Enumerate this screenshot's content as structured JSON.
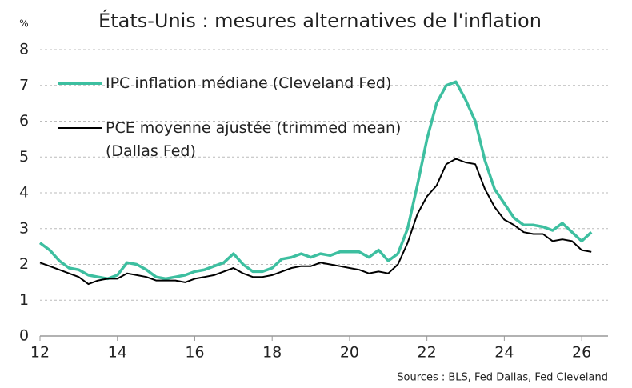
{
  "chart_data": {
    "type": "line",
    "title": "États-Unis : mesures alternatives de l'inflation",
    "y_label": "%",
    "source": "Sources : BLS, Fed Dallas, Fed Cleveland",
    "x": [
      12,
      12.25,
      12.5,
      12.75,
      13,
      13.25,
      13.5,
      13.75,
      14,
      14.25,
      14.5,
      14.75,
      15,
      15.25,
      15.5,
      15.75,
      16,
      16.25,
      16.5,
      16.75,
      17,
      17.25,
      17.5,
      17.75,
      18,
      18.25,
      18.5,
      18.75,
      19,
      19.25,
      19.5,
      19.75,
      20,
      20.25,
      20.5,
      20.75,
      21,
      21.25,
      21.5,
      21.75,
      22,
      22.25,
      22.5,
      22.75,
      23,
      23.25,
      23.5,
      23.75,
      24,
      24.25,
      24.5,
      24.75,
      25,
      25.25,
      25.5,
      25.75,
      26,
      26.25
    ],
    "series": [
      {
        "name": "IPC inflation médiane (Cleveland Fed)",
        "color": "#3dbfa0",
        "values": [
          2.6,
          2.4,
          2.1,
          1.9,
          1.85,
          1.7,
          1.65,
          1.6,
          1.7,
          2.05,
          2.0,
          1.85,
          1.65,
          1.6,
          1.65,
          1.7,
          1.8,
          1.85,
          1.95,
          2.05,
          2.3,
          2.0,
          1.8,
          1.8,
          1.9,
          2.15,
          2.2,
          2.3,
          2.2,
          2.3,
          2.25,
          2.35,
          2.35,
          2.35,
          2.2,
          2.4,
          2.1,
          2.3,
          3.0,
          4.2,
          5.5,
          6.5,
          7.0,
          7.1,
          6.6,
          6.0,
          4.9,
          4.1,
          3.7,
          3.3,
          3.1,
          3.1,
          3.05,
          2.95,
          3.15,
          2.9,
          2.65,
          2.9
        ]
      },
      {
        "name": "PCE moyenne ajustée (trimmed mean) (Dallas Fed)",
        "color": "#000000",
        "values": [
          2.05,
          1.95,
          1.85,
          1.75,
          1.65,
          1.45,
          1.55,
          1.6,
          1.6,
          1.75,
          1.7,
          1.65,
          1.55,
          1.55,
          1.55,
          1.5,
          1.6,
          1.65,
          1.7,
          1.8,
          1.9,
          1.75,
          1.65,
          1.65,
          1.7,
          1.8,
          1.9,
          1.95,
          1.95,
          2.05,
          2.0,
          1.95,
          1.9,
          1.85,
          1.75,
          1.8,
          1.75,
          2.0,
          2.6,
          3.4,
          3.9,
          4.2,
          4.8,
          4.95,
          4.85,
          4.8,
          4.1,
          3.6,
          3.25,
          3.1,
          2.9,
          2.85,
          2.85,
          2.65,
          2.7,
          2.65,
          2.4,
          2.35
        ]
      }
    ],
    "xlim": [
      12,
      26.68
    ],
    "xticks": [
      12,
      14,
      16,
      18,
      20,
      22,
      24,
      26
    ],
    "ylim": [
      0,
      8
    ],
    "yticks": [
      0,
      1,
      2,
      3,
      4,
      5,
      6,
      7,
      8
    ],
    "grid": true
  }
}
